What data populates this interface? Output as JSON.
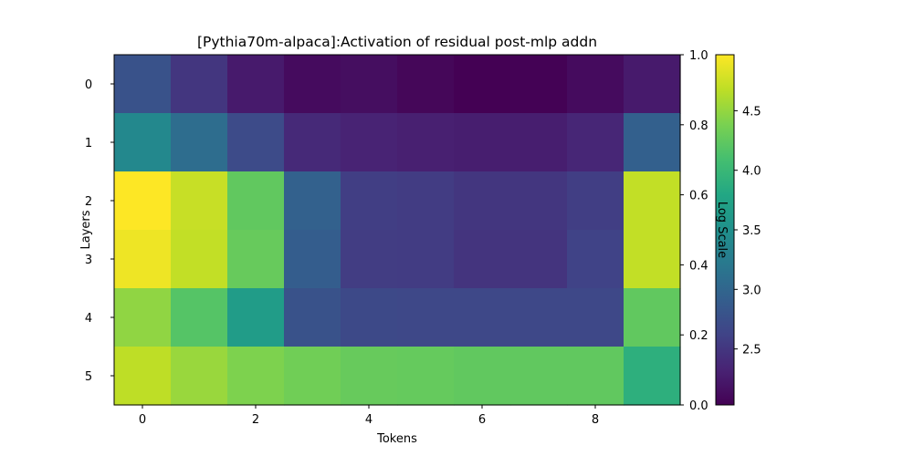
{
  "chart_data": {
    "type": "heatmap",
    "title": "[Pythia70m-alpaca]:Activation of residual post-mlp addn",
    "xlabel": "Tokens",
    "ylabel": "Layers",
    "x_ticks": [
      0,
      2,
      4,
      6,
      8
    ],
    "y_ticks": [
      0,
      1,
      2,
      3,
      4,
      5
    ],
    "rows": [
      0,
      1,
      2,
      3,
      4,
      5
    ],
    "cols": [
      0,
      1,
      2,
      3,
      4,
      5,
      6,
      7,
      8,
      9
    ],
    "values": [
      [
        2.78,
        2.5,
        2.25,
        2.12,
        2.14,
        2.08,
        2.03,
        2.04,
        2.12,
        2.25
      ],
      [
        3.4,
        3.08,
        2.7,
        2.38,
        2.32,
        2.3,
        2.28,
        2.28,
        2.35,
        2.93
      ],
      [
        4.97,
        4.72,
        4.25,
        2.95,
        2.57,
        2.55,
        2.5,
        2.5,
        2.57,
        4.7
      ],
      [
        4.9,
        4.7,
        4.28,
        2.9,
        2.56,
        2.55,
        2.48,
        2.48,
        2.62,
        4.7
      ],
      [
        4.48,
        4.18,
        3.65,
        2.78,
        2.68,
        2.67,
        2.67,
        2.67,
        2.67,
        4.25
      ],
      [
        4.68,
        4.52,
        4.4,
        4.33,
        4.28,
        4.27,
        4.25,
        4.25,
        4.25,
        3.9
      ]
    ],
    "colormap": "viridis",
    "colorbar": {
      "label": "Log Scale",
      "min": 2.03,
      "max": 4.97,
      "ticks": [
        "2.5",
        "3.0",
        "3.5",
        "4.0",
        "4.5"
      ]
    },
    "secondary_y_axis": {
      "ticks": [
        "0.0",
        "0.2",
        "0.4",
        "0.6",
        "0.8",
        "1.0"
      ]
    }
  }
}
